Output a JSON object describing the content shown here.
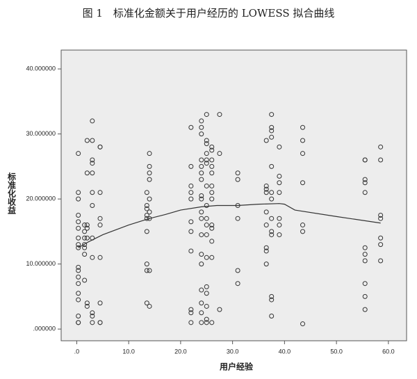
{
  "chart_data": {
    "type": "scatter",
    "title": "图 1　标准化金额关于用户经历的 LOWESS 拟合曲线",
    "x_label": "用户经验",
    "y_label": "标准化收益",
    "xlim": [
      -3,
      63.5
    ],
    "ylim": [
      -1.8,
      42.9
    ],
    "xticks": [
      {
        "value": 0,
        "label": ".0"
      },
      {
        "value": 10,
        "label": "10.0"
      },
      {
        "value": 20,
        "label": "20.0"
      },
      {
        "value": 30,
        "label": "30.0"
      },
      {
        "value": 40,
        "label": "40.0"
      },
      {
        "value": 50,
        "label": "50.0"
      },
      {
        "value": 60,
        "label": "60.0"
      }
    ],
    "yticks": [
      {
        "value": 0,
        "label": ".000000"
      },
      {
        "value": 10,
        "label": "10.000000"
      },
      {
        "value": 20,
        "label": "20.000000"
      },
      {
        "value": 30,
        "label": "30.000000"
      },
      {
        "value": 40,
        "label": "40.000000"
      }
    ],
    "color": "#333333",
    "plot_background": "#ededed",
    "x": [
      0.3,
      0.3,
      0.3,
      0.3,
      0.3,
      0.3,
      0.3,
      0.3,
      0.3,
      0.3,
      0.3,
      0.3,
      0.3,
      0.3,
      0.3,
      0.3,
      0.3,
      0.3,
      1.5,
      1.5,
      1.5,
      1.5,
      1.5,
      1.5,
      1.5,
      2,
      2,
      2,
      2,
      2,
      2,
      2,
      3,
      3,
      3,
      3,
      3,
      3,
      3,
      3,
      3,
      3,
      3,
      3,
      4.5,
      4.5,
      4.5,
      4.5,
      4.5,
      4.5,
      4.5,
      4.5,
      4.5,
      13.5,
      13.5,
      13.5,
      13.5,
      13.5,
      13.5,
      13.5,
      13.5,
      13.5,
      14,
      14,
      14,
      14,
      14,
      14,
      14,
      14,
      14,
      22,
      22,
      22,
      22,
      22,
      22,
      22,
      22,
      22,
      22,
      22,
      24,
      24,
      24,
      24,
      24,
      24,
      24,
      24,
      24,
      24,
      24,
      24,
      24,
      24,
      24,
      24,
      24,
      24,
      25,
      25,
      25,
      25,
      25,
      25,
      25,
      25,
      25,
      25,
      25,
      25,
      25,
      25,
      25,
      25,
      25,
      26,
      26,
      26,
      26,
      26,
      26,
      26,
      26,
      26,
      26,
      26,
      26,
      26,
      27.5,
      27.5,
      27.5,
      31,
      31,
      31,
      31,
      31,
      31,
      36.5,
      36.5,
      36.5,
      36.5,
      36.5,
      36.5,
      36.5,
      36.5,
      36.5,
      37.5,
      37.5,
      37.5,
      37.5,
      37.5,
      37.5,
      37.5,
      37.5,
      37.5,
      37.5,
      37.5,
      37.5,
      37.5,
      39,
      39,
      39,
      39,
      39,
      39,
      39,
      43.5,
      43.5,
      43.5,
      43.5,
      43.5,
      43.5,
      43.5,
      55.5,
      55.5,
      55.5,
      55.5,
      55.5,
      55.5,
      55.5,
      55.5,
      55.5,
      55.5,
      55.5,
      58.5,
      58.5,
      58.5,
      58.5,
      58.5,
      58.5,
      58.5
    ],
    "values": [
      27,
      21,
      20,
      17.5,
      16.5,
      15.5,
      14,
      13,
      12.5,
      9.5,
      9,
      8,
      7,
      5.5,
      4.5,
      2,
      1,
      1,
      16,
      15,
      14,
      13,
      12.5,
      11.5,
      7.5,
      29,
      24,
      16,
      15.5,
      14,
      4,
      3.5,
      32,
      29,
      26,
      25.5,
      24,
      21,
      19,
      14,
      11,
      2.5,
      2,
      1,
      28,
      28,
      21,
      17,
      16,
      11,
      4,
      1,
      1,
      21,
      19,
      18.5,
      17.5,
      17,
      15,
      10,
      9,
      4,
      27,
      25,
      24,
      23,
      20,
      18,
      17,
      9,
      3.5,
      31,
      25,
      22,
      21,
      20,
      16.5,
      15,
      12,
      3,
      2.5,
      1,
      32,
      31,
      30,
      26,
      25,
      24,
      23,
      20.5,
      20,
      18,
      17,
      14.5,
      11.5,
      10,
      6,
      4,
      2.5,
      1,
      33,
      29,
      28.5,
      27,
      26,
      25.5,
      22,
      19,
      17,
      16,
      14.5,
      11,
      6.5,
      5.5,
      3.5,
      1.5,
      1,
      28,
      27.5,
      26,
      25,
      24,
      22,
      21,
      20,
      16,
      15.5,
      13.5,
      11,
      1,
      33,
      27,
      3,
      24,
      23,
      19,
      17,
      9,
      7,
      29,
      22,
      21.5,
      21,
      18,
      16,
      12.5,
      12,
      10,
      33,
      31,
      30.5,
      29.5,
      25,
      21,
      20,
      17,
      15,
      14.5,
      5,
      4.5,
      2,
      28,
      23.5,
      22.5,
      21,
      17,
      16,
      14.5,
      31,
      29,
      27,
      22.5,
      16,
      15,
      0.8,
      26,
      26,
      23,
      22.5,
      21,
      12.5,
      11.5,
      10.5,
      7,
      5,
      3,
      28,
      26,
      17.5,
      17,
      14,
      13,
      10.5
    ],
    "fit_line": {
      "x": [
        0.3,
        2,
        5,
        10,
        14,
        17,
        20,
        24,
        27,
        31,
        35,
        39,
        40,
        42,
        50,
        58.5
      ],
      "values": [
        12.5,
        13.3,
        14.5,
        16,
        17,
        17.6,
        18.3,
        18.8,
        19,
        19,
        19.2,
        19.3,
        19.2,
        18.3,
        17.3,
        16.3
      ]
    }
  }
}
